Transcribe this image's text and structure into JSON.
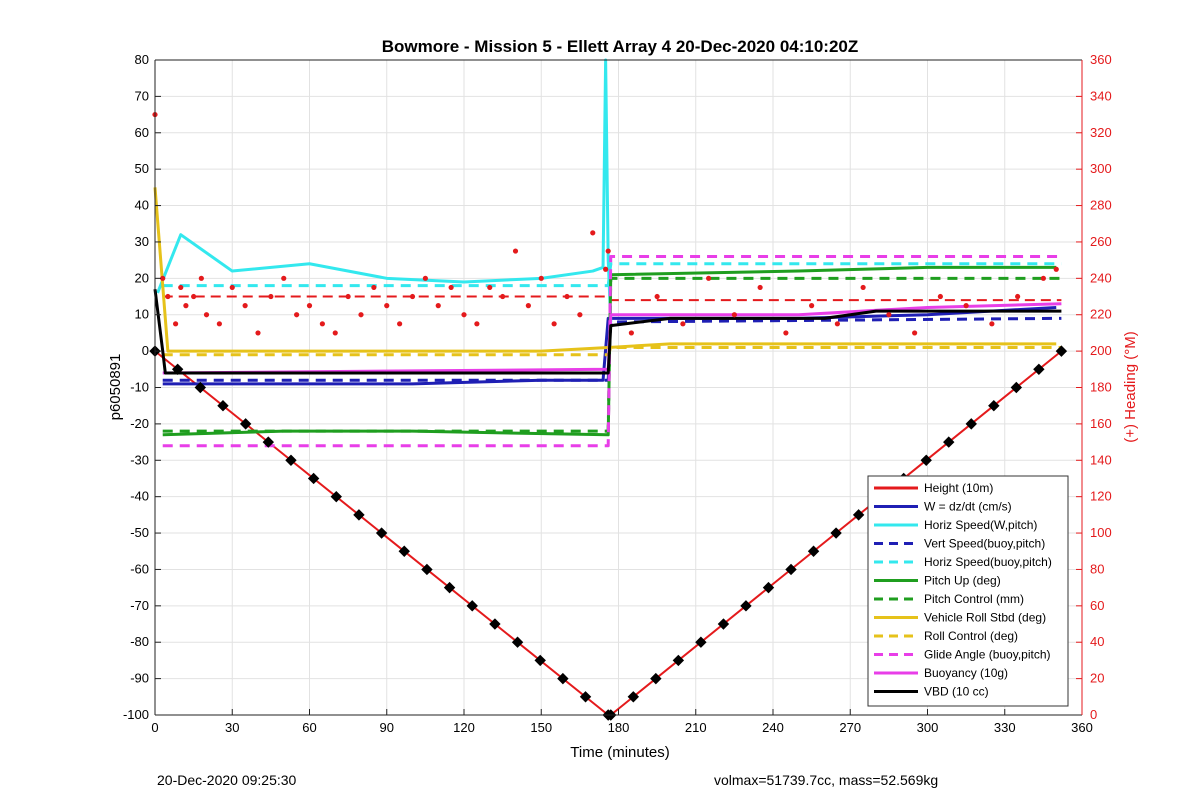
{
  "chart_data": {
    "type": "line",
    "title": "Bowmore - Mission 5 - Ellett Array 4 20-Dec-2020 04:10:20Z",
    "xlabel": "Time (minutes)",
    "ylabel_left": "p6050891",
    "ylabel_right": "(+) Heading (°M)",
    "xlim": [
      0,
      360
    ],
    "ylim_left": [
      -100,
      80
    ],
    "ylim_right": [
      0,
      360
    ],
    "x_ticks": [
      "0",
      "30",
      "60",
      "90",
      "120",
      "150",
      "180",
      "210",
      "240",
      "270",
      "300",
      "330",
      "360"
    ],
    "y_ticks_left": [
      "80",
      "70",
      "60",
      "50",
      "40",
      "30",
      "20",
      "10",
      "0",
      "-10",
      "-20",
      "-30",
      "-40",
      "-50",
      "-60",
      "-70",
      "-80",
      "-90",
      "-100"
    ],
    "y_ticks_right": [
      "360",
      "340",
      "320",
      "300",
      "280",
      "260",
      "240",
      "220",
      "200",
      "180",
      "160",
      "140",
      "120",
      "100",
      "80",
      "60",
      "40",
      "20",
      "0"
    ],
    "grid": true,
    "legend_position": "lower-right",
    "colors": {
      "red": "#e41a1c",
      "blue": "#1f1fb4",
      "cyan": "#33e8ee",
      "green": "#1f9e1f",
      "yellow": "#e6c21a",
      "magenta": "#e83ee8",
      "black": "#000000",
      "heading": "#e41a1c"
    },
    "series": [
      {
        "name": "Height (10m)",
        "color": "red",
        "dash": false,
        "x": [
          0,
          176,
          177,
          352
        ],
        "y": [
          0,
          -100,
          -100,
          0
        ]
      },
      {
        "name": "W = dz/dt (cm/s)",
        "color": "blue",
        "dash": false,
        "x": [
          3,
          50,
          100,
          150,
          174,
          176,
          200,
          250,
          300,
          350
        ],
        "y": [
          -9,
          -9,
          -9,
          -8,
          -8,
          9,
          9,
          9,
          10,
          12
        ]
      },
      {
        "name": "Horiz Speed(W,pitch)",
        "color": "cyan",
        "dash": false,
        "x": [
          1,
          10,
          30,
          60,
          90,
          120,
          150,
          170,
          174,
          175,
          176,
          177
        ],
        "y": [
          16,
          32,
          22,
          24,
          20,
          19,
          20,
          22,
          23,
          80,
          25,
          8
        ]
      },
      {
        "name": "Vert Speed(buoy,pitch)",
        "color": "blue",
        "dash": true,
        "x": [
          3,
          176,
          177,
          352
        ],
        "y": [
          -8,
          -8,
          8,
          9
        ]
      },
      {
        "name": "Horiz Speed(buoy,pitch)",
        "color": "cyan",
        "dash": true,
        "x": [
          3,
          176,
          177,
          352
        ],
        "y": [
          18,
          18,
          24,
          24
        ]
      },
      {
        "name": "Pitch Up (deg)",
        "color": "green",
        "dash": false,
        "x": [
          3,
          50,
          100,
          176,
          177,
          250,
          300,
          350
        ],
        "y": [
          -23,
          -22,
          -22,
          -23,
          21,
          22,
          23,
          23
        ]
      },
      {
        "name": "Pitch Control (mm)",
        "color": "green",
        "dash": true,
        "x": [
          3,
          176,
          177,
          352
        ],
        "y": [
          -22,
          -22,
          20,
          20
        ]
      },
      {
        "name": "Vehicle Roll Stbd (deg)",
        "color": "yellow",
        "dash": false,
        "x": [
          0,
          5,
          30,
          60,
          90,
          120,
          150,
          176,
          200,
          250,
          300,
          350
        ],
        "y": [
          45,
          0,
          0,
          0,
          0,
          0,
          0,
          1,
          2,
          2,
          2,
          2
        ]
      },
      {
        "name": "Roll Control (deg)",
        "color": "yellow",
        "dash": true,
        "x": [
          3,
          176,
          177,
          352
        ],
        "y": [
          -1,
          -1,
          1,
          1
        ]
      },
      {
        "name": "Glide Angle (buoy,pitch)",
        "color": "magenta",
        "dash": true,
        "x": [
          3,
          176,
          177,
          352
        ],
        "y": [
          -26,
          -26,
          26,
          26
        ]
      },
      {
        "name": "Buoyancy (10g)",
        "color": "magenta",
        "dash": false,
        "x": [
          3,
          176,
          177,
          250,
          300,
          352
        ],
        "y": [
          -6,
          -5,
          10,
          10,
          12,
          13
        ]
      },
      {
        "name": "VBD (10 cc)",
        "color": "black",
        "dash": false,
        "x": [
          0,
          3,
          4,
          176,
          177,
          200,
          260,
          280,
          352
        ],
        "y": [
          17,
          0,
          -6,
          -6,
          7,
          9,
          9,
          11,
          11
        ]
      }
    ],
    "heading_points": {
      "name": "Heading",
      "color": "heading",
      "axis": "right",
      "x": [
        0,
        3,
        5,
        8,
        10,
        12,
        15,
        18,
        20,
        25,
        30,
        35,
        40,
        45,
        50,
        55,
        60,
        65,
        70,
        75,
        80,
        85,
        90,
        95,
        100,
        105,
        110,
        115,
        120,
        125,
        130,
        135,
        140,
        145,
        150,
        155,
        160,
        165,
        170,
        175,
        176,
        185,
        195,
        205,
        215,
        225,
        235,
        245,
        255,
        265,
        275,
        285,
        295,
        305,
        315,
        325,
        335,
        345,
        350
      ],
      "y": [
        330,
        240,
        230,
        215,
        235,
        225,
        230,
        240,
        220,
        215,
        235,
        225,
        210,
        230,
        240,
        220,
        225,
        215,
        210,
        230,
        220,
        235,
        225,
        215,
        230,
        240,
        225,
        235,
        220,
        215,
        235,
        230,
        255,
        225,
        240,
        215,
        230,
        220,
        265,
        245,
        255,
        210,
        230,
        215,
        240,
        220,
        235,
        210,
        225,
        215,
        235,
        220,
        210,
        230,
        225,
        215,
        230,
        240,
        245
      ]
    },
    "heading_dash_lines": {
      "x": [
        3,
        176,
        177,
        352
      ],
      "y": [
        230,
        230,
        228,
        228
      ]
    },
    "legend_entries": [
      {
        "label": "Height (10m)",
        "color": "red",
        "dash": false
      },
      {
        "label": "W = dz/dt (cm/s)",
        "color": "blue",
        "dash": false
      },
      {
        "label": "Horiz Speed(W,pitch)",
        "color": "cyan",
        "dash": false
      },
      {
        "label": "Vert Speed(buoy,pitch)",
        "color": "blue",
        "dash": true
      },
      {
        "label": "Horiz Speed(buoy,pitch)",
        "color": "cyan",
        "dash": true
      },
      {
        "label": "Pitch Up (deg)",
        "color": "green",
        "dash": false
      },
      {
        "label": "Pitch Control (mm)",
        "color": "green",
        "dash": true
      },
      {
        "label": "Vehicle Roll Stbd (deg)",
        "color": "yellow",
        "dash": false
      },
      {
        "label": "Roll Control (deg)",
        "color": "yellow",
        "dash": true
      },
      {
        "label": "Glide Angle (buoy,pitch)",
        "color": "magenta",
        "dash": true
      },
      {
        "label": "Buoyancy (10g)",
        "color": "magenta",
        "dash": false
      },
      {
        "label": "VBD (10 cc)",
        "color": "black",
        "dash": false
      }
    ]
  },
  "footer": {
    "left": "20-Dec-2020 09:25:30",
    "right": "volmax=51739.7cc, mass=52.569kg"
  }
}
